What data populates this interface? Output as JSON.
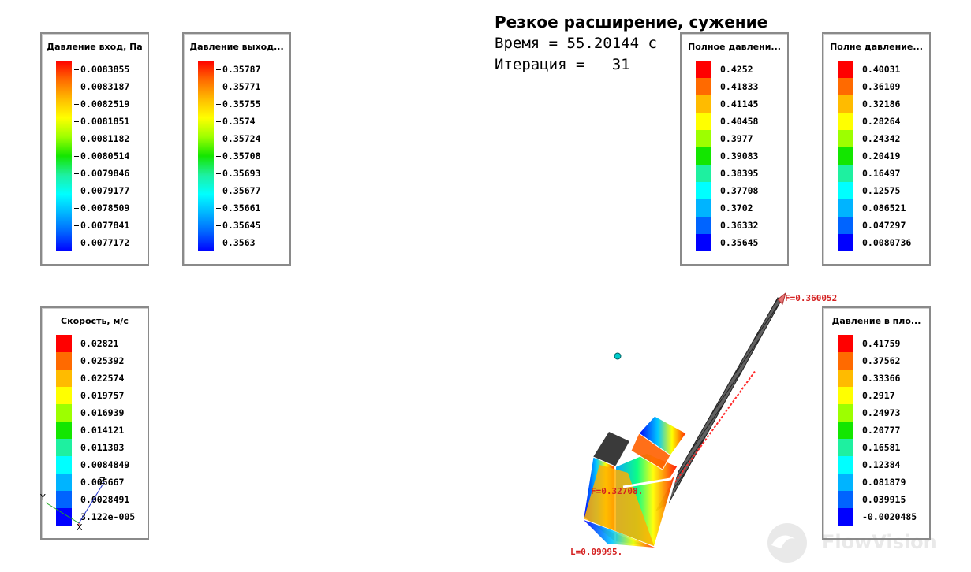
{
  "header": {
    "title": "Резкое расширение, сужение",
    "time_line": "Время = 55.20144 с",
    "iteration_line": "Итерация =   31"
  },
  "legends": [
    {
      "title": "Давление вход, Па",
      "mode": "gradient",
      "labels": [
        "0.0083855",
        "0.0083187",
        "0.0082519",
        "0.0081851",
        "0.0081182",
        "0.0080514",
        "0.0079846",
        "0.0079177",
        "0.0078509",
        "0.0077841",
        "0.0077172"
      ]
    },
    {
      "title": "Давление выход...",
      "mode": "gradient",
      "labels": [
        "0.35787",
        "0.35771",
        "0.35755",
        "0.3574",
        "0.35724",
        "0.35708",
        "0.35693",
        "0.35677",
        "0.35661",
        "0.35645",
        "0.3563"
      ]
    },
    {
      "title": "Полное давлени...",
      "mode": "discrete",
      "labels": [
        "0.4252",
        "0.41833",
        "0.41145",
        "0.40458",
        "0.3977",
        "0.39083",
        "0.38395",
        "0.37708",
        "0.3702",
        "0.36332",
        "0.35645"
      ]
    },
    {
      "title": "Полне давление...",
      "mode": "discrete",
      "labels": [
        "0.40031",
        "0.36109",
        "0.32186",
        "0.28264",
        "0.24342",
        "0.20419",
        "0.16497",
        "0.12575",
        "0.086521",
        "0.047297",
        "0.0080736"
      ]
    },
    {
      "title": "Скорость, м/с",
      "mode": "discrete",
      "labels": [
        "0.02821",
        "0.025392",
        "0.022574",
        "0.019757",
        "0.016939",
        "0.014121",
        "0.011303",
        "0.0084849",
        "0.005667",
        "0.0028491",
        "3.122e-005"
      ]
    },
    {
      "title": "Давление в пло...",
      "mode": "discrete",
      "labels": [
        "0.41759",
        "0.37562",
        "0.33366",
        "0.2917",
        "0.24973",
        "0.20777",
        "0.16581",
        "0.12384",
        "0.081879",
        "0.039915",
        "-0.0020485"
      ]
    }
  ],
  "colors": {
    "discrete": [
      "#ff0000",
      "#ff6a00",
      "#ffbb00",
      "#ffff00",
      "#9dff00",
      "#13e600",
      "#1ef0a0",
      "#00ffff",
      "#00b4ff",
      "#0064ff",
      "#0000ff"
    ]
  },
  "annotations": {
    "f_top": "F=0.360052",
    "f_mid": "F=0.32708.",
    "l_bottom": "L=0.09995."
  },
  "axes": {
    "y": "Y",
    "x": "X",
    "z": "Z"
  },
  "watermark": "FlowVision"
}
